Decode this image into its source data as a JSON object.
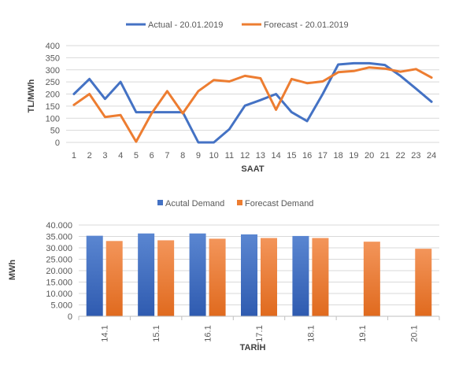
{
  "chart_data": [
    {
      "type": "line",
      "title": "",
      "xlabel": "SAAT",
      "ylabel": "TL/MWh",
      "categories": [
        "1",
        "2",
        "3",
        "4",
        "5",
        "6",
        "7",
        "8",
        "9",
        "10",
        "11",
        "12",
        "13",
        "14",
        "15",
        "16",
        "17",
        "18",
        "19",
        "20",
        "21",
        "22",
        "23",
        "24"
      ],
      "ylim": [
        0,
        400
      ],
      "yticks": [
        "0",
        "50",
        "100",
        "150",
        "200",
        "250",
        "300",
        "350",
        "400"
      ],
      "grid": true,
      "legend": "top",
      "series": [
        {
          "name": "Actual - 20.01.2019",
          "color": "#4472C4",
          "values": [
            200,
            262,
            180,
            250,
            125,
            125,
            125,
            125,
            0,
            0,
            55,
            152,
            175,
            200,
            125,
            88,
            200,
            322,
            327,
            327,
            320,
            275,
            222,
            168
          ]
        },
        {
          "name": "Forecast - 20.01.2019",
          "color": "#ED7D31",
          "values": [
            155,
            200,
            105,
            113,
            3,
            120,
            212,
            120,
            212,
            258,
            252,
            275,
            265,
            135,
            262,
            245,
            252,
            290,
            295,
            310,
            305,
            292,
            303,
            268
          ]
        }
      ]
    },
    {
      "type": "bar",
      "title": "",
      "xlabel": "TARİH",
      "ylabel": "MWh",
      "categories": [
        "14.1",
        "15.1",
        "16.1",
        "17.1",
        "18.1",
        "19.1",
        "20.1"
      ],
      "ylim": [
        0,
        40000
      ],
      "yticks": [
        "0",
        "5.000",
        "10.000",
        "15.000",
        "20.000",
        "25.000",
        "30.000",
        "35.000",
        "40.000"
      ],
      "grid": true,
      "legend": "top",
      "series": [
        {
          "name": "Acutal Demand",
          "color": "#4472C4",
          "values": [
            35300,
            36300,
            36300,
            35900,
            35200,
            null,
            null
          ]
        },
        {
          "name": "Forecast Demand",
          "color": "#ED7D31",
          "values": [
            33000,
            33300,
            34000,
            34300,
            34300,
            32700,
            29600
          ]
        }
      ]
    }
  ]
}
